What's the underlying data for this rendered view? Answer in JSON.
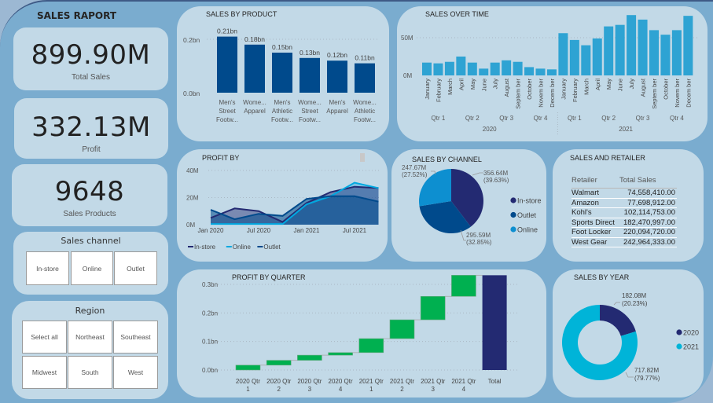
{
  "report": {
    "title": "SALES RAPORT"
  },
  "kpis": [
    {
      "value": "899.90M",
      "label": "Total Sales"
    },
    {
      "value": "332.13M",
      "label": "Profit"
    },
    {
      "value": "9648",
      "label": "Sales Products"
    }
  ],
  "sales_channel_slicer": {
    "title": "Sales channel",
    "options": [
      "In-store",
      "Online",
      "Outlet"
    ]
  },
  "region_slicer": {
    "title": "Region",
    "options": [
      "Select all",
      "Northeast",
      "Southeast",
      "Midwest",
      "South",
      "West"
    ]
  },
  "colors": {
    "dark_navy": "#232a72",
    "navy": "#004a8c",
    "teal": "#2ea3d3",
    "cyan": "#00b4d8",
    "green": "#00b050",
    "card": "#c2d9e7",
    "panel": "#7aaccf"
  },
  "chart_data": [
    {
      "id": "sales_by_product",
      "type": "bar",
      "title": "SALES BY PRODUCT",
      "categories": [
        [
          "Men's",
          "Street",
          "Footw..."
        ],
        [
          "Wome...",
          "Apparel"
        ],
        [
          "Men's",
          "Athletic",
          "Footw..."
        ],
        [
          "Wome...",
          "Street",
          "Footw..."
        ],
        [
          "Men's",
          "Apparel"
        ],
        [
          "Wome...",
          "Athletic",
          "Footw..."
        ]
      ],
      "values": [
        0.21,
        0.18,
        0.15,
        0.13,
        0.12,
        0.11
      ],
      "data_labels": [
        "0.21bn",
        "0.18bn",
        "0.15bn",
        "0.13bn",
        "0.12bn",
        "0.11bn"
      ],
      "yticks": [
        "0.0bn",
        "0.2bn"
      ],
      "ylim": [
        0,
        0.25
      ],
      "unit": "bn"
    },
    {
      "id": "sales_over_time",
      "type": "bar",
      "title": "SALES OVER TIME",
      "months": [
        "January",
        "February",
        "March",
        "April",
        "May",
        "June",
        "July",
        "August",
        "Septem ber",
        "October",
        "Novem ber",
        "Decem ber"
      ],
      "quarters": [
        "Qtr 1",
        "Qtr 2",
        "Qtr 3",
        "Qtr 4"
      ],
      "years": [
        "2020",
        "2021"
      ],
      "series": [
        {
          "name": "2020",
          "values": [
            17,
            16,
            18,
            25,
            17,
            9,
            17,
            20,
            18,
            11,
            9,
            8
          ]
        },
        {
          "name": "2021",
          "values": [
            56,
            47,
            40,
            49,
            65,
            67,
            80,
            74,
            60,
            54,
            60,
            79
          ]
        }
      ],
      "yticks": [
        "0M",
        "50M"
      ],
      "ylim": [
        0,
        85
      ],
      "unit": "M"
    },
    {
      "id": "profit_by",
      "type": "area",
      "title": "PROFIT BY",
      "x": [
        "Jan 2020",
        "Apr 2020",
        "Jul 2020",
        "Oct 2020",
        "Jan 2021",
        "Apr 2021",
        "Jul 2021",
        "Oct 2021"
      ],
      "xticks": [
        "Jan 2020",
        "Jul 2020",
        "Jan 2021",
        "Jul 2021"
      ],
      "series": [
        {
          "name": "In-store",
          "color": "#232a72",
          "values": [
            5,
            12,
            10,
            2,
            16,
            24,
            28,
            27
          ]
        },
        {
          "name": "Online",
          "color": "#00a8e0",
          "values": [
            0.5,
            0.5,
            0.5,
            0.5,
            15,
            21,
            31,
            27
          ]
        },
        {
          "name": "Outlet",
          "color": "#004a8c",
          "values": [
            11,
            4,
            8,
            6.5,
            19,
            21,
            21,
            17
          ]
        }
      ],
      "yticks": [
        "0M",
        "20M",
        "40M"
      ],
      "ylim": [
        0,
        40
      ],
      "legend": "bottom-left"
    },
    {
      "id": "sales_by_channel",
      "type": "pie",
      "title": "SALES BY CHANNEL",
      "slices": [
        {
          "name": "In-store",
          "value": 356.64,
          "label": "356.64M",
          "pct": "(39.63%)",
          "color": "#232a72"
        },
        {
          "name": "Outlet",
          "value": 295.59,
          "label": "295.59M",
          "pct": "(32.85%)",
          "color": "#004a8c"
        },
        {
          "name": "Online",
          "value": 247.67,
          "label": "247.67M",
          "pct": "(27.52%)",
          "color": "#0d8fd0"
        }
      ],
      "legend": "right"
    },
    {
      "id": "sales_and_retailer",
      "type": "table",
      "title": "SALES AND RETAILER",
      "columns": [
        "Retailer",
        "Total Sales"
      ],
      "rows": [
        [
          "Walmart",
          "74,558,410.00"
        ],
        [
          "Amazon",
          "77,698,912.00"
        ],
        [
          "Kohl's",
          "102,114,753.00"
        ],
        [
          "Sports Direct",
          "182,470,997.00"
        ],
        [
          "Foot Locker",
          "220,094,720.00"
        ],
        [
          "West Gear",
          "242,964,333.00"
        ]
      ],
      "sort": "Total Sales ascending"
    },
    {
      "id": "profit_by_quarter",
      "type": "bar",
      "subtype": "waterfall",
      "title": "PROFIT BY QUARTER",
      "categories": [
        [
          "2020 Qtr",
          "1"
        ],
        [
          "2020 Qtr",
          "2"
        ],
        [
          "2020 Qtr",
          "3"
        ],
        [
          "2020 Qtr",
          "4"
        ],
        [
          "2021 Qtr",
          "1"
        ],
        [
          "2021 Qtr",
          "2"
        ],
        [
          "2021 Qtr",
          "3"
        ],
        [
          "2021 Qtr",
          "4"
        ],
        [
          "Total"
        ]
      ],
      "values": [
        0.017,
        0.017,
        0.018,
        0.009,
        0.049,
        0.066,
        0.082,
        0.074
      ],
      "total": 0.332,
      "yticks": [
        "0.0bn",
        "0.1bn",
        "0.2bn",
        "0.3bn"
      ],
      "ylim": [
        0,
        0.33
      ],
      "unit": "bn"
    },
    {
      "id": "sales_by_year",
      "type": "pie",
      "subtype": "donut",
      "title": "SALES BY YEAR",
      "slices": [
        {
          "name": "2020",
          "value": 182.08,
          "label": "182.08M",
          "pct": "(20.23%)",
          "color": "#232a72"
        },
        {
          "name": "2021",
          "value": 717.82,
          "label": "717.82M",
          "pct": "(79.77%)",
          "color": "#00b4d8"
        }
      ],
      "legend": "right"
    }
  ]
}
